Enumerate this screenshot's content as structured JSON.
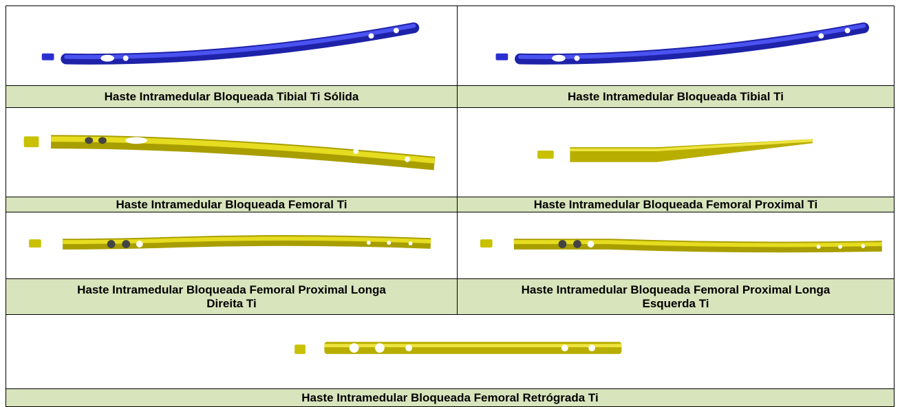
{
  "table": {
    "rows": [
      [
        "Haste Intramedular Bloqueada Tibial Ti Sólida",
        "Haste Intramedular Bloqueada Tibial Ti"
      ],
      [
        "Haste Intramedular Bloqueada Femoral Ti",
        "Haste Intramedular Bloqueada Femoral Proximal Ti"
      ],
      [
        "Haste Intramedular Bloqueada Femoral Proximal Longa Direita Ti",
        "Haste Intramedular Bloqueada Femoral Proximal Longa Esquerda Ti"
      ],
      [
        "Haste Intramedular Bloqueada Femoral Retrógrada Ti"
      ]
    ]
  }
}
